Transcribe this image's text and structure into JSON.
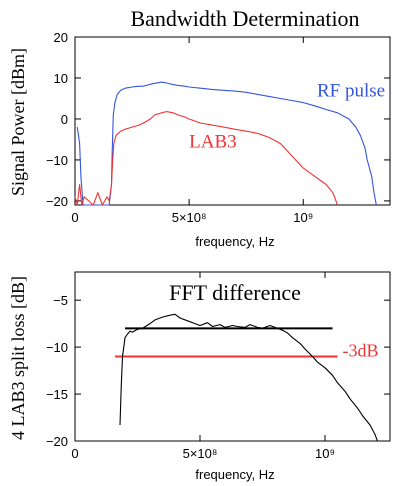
{
  "chart_data": [
    {
      "type": "line",
      "title": "Bandwidth Determination",
      "xlabel": "frequency, Hz",
      "ylabel": "Signal Power [dBm]",
      "xlim": [
        0,
        1380000000
      ],
      "ylim": [
        -21,
        20
      ],
      "xticks": [
        {
          "value": 0,
          "label": "0"
        },
        {
          "value": 500000000,
          "label": "5×10⁸"
        },
        {
          "value": 1000000000,
          "label": "10⁹"
        }
      ],
      "yticks": [
        {
          "value": 20,
          "label": "20"
        },
        {
          "value": 10,
          "label": "10"
        },
        {
          "value": 0,
          "label": "0"
        },
        {
          "value": -10,
          "label": "−10"
        },
        {
          "value": -20,
          "label": "−20"
        }
      ],
      "grid": false,
      "series": [
        {
          "name": "RF pulse",
          "color": "#3355dd",
          "x": [
            10000000,
            20000000,
            26000000,
            35000000,
            150000000,
            160000000,
            163000000,
            168000000,
            175000000,
            185000000,
            200000000,
            220000000,
            250000000,
            280000000,
            300000000,
            320000000,
            340000000,
            360000000,
            380000000,
            400000000,
            420000000,
            450000000,
            480000000,
            500000000,
            550000000,
            600000000,
            650000000,
            700000000,
            750000000,
            800000000,
            850000000,
            900000000,
            950000000,
            1000000000,
            1050000000,
            1100000000,
            1150000000,
            1200000000,
            1230000000,
            1250000000,
            1270000000,
            1280000000,
            1300000000,
            1310000000,
            1320000000
          ],
          "y": [
            -2,
            -6,
            -14,
            -21,
            -21,
            -16,
            -8,
            1,
            4,
            6,
            7,
            7.5,
            7.8,
            8,
            8,
            8.3,
            8.6,
            8.8,
            9,
            8.8,
            8.5,
            8.2,
            8,
            7.8,
            7.5,
            7.2,
            7,
            6.8,
            6.5,
            6,
            5.5,
            5,
            4.5,
            4,
            3.2,
            2.3,
            1.5,
            0,
            -2,
            -4,
            -7,
            -10,
            -14,
            -18,
            -21
          ]
        },
        {
          "name": "LAB3",
          "color": "#ee3333",
          "x": [
            0,
            10000000,
            20000000,
            30000000,
            40000000,
            60000000,
            80000000,
            100000000,
            120000000,
            140000000,
            150000000,
            160000000,
            165000000,
            170000000,
            175000000,
            180000000,
            190000000,
            200000000,
            220000000,
            250000000,
            280000000,
            300000000,
            330000000,
            350000000,
            380000000,
            400000000,
            430000000,
            450000000,
            480000000,
            500000000,
            550000000,
            600000000,
            650000000,
            700000000,
            750000000,
            800000000,
            850000000,
            900000000,
            950000000,
            1000000000,
            1050000000,
            1100000000,
            1130000000,
            1150000000
          ],
          "y": [
            -19,
            -21,
            -16,
            -21,
            -19,
            -20,
            -21,
            -18,
            -21,
            -19,
            -20,
            -16,
            -10,
            -6,
            -5,
            -4,
            -3.5,
            -3,
            -2.5,
            -2,
            -1.5,
            -1,
            0,
            1,
            1.5,
            1.8,
            1.5,
            1,
            0.5,
            0,
            -1,
            -1.5,
            -2,
            -2.5,
            -3,
            -3.5,
            -4.5,
            -6,
            -9,
            -12,
            -14,
            -16,
            -18,
            -21
          ]
        }
      ],
      "annotations": [
        {
          "text": "RF pulse",
          "color": "#3355dd",
          "x": 1060000000,
          "y": 5.5
        },
        {
          "text": "LAB3",
          "color": "#ee3333",
          "x": 500000000,
          "y": -7
        }
      ]
    },
    {
      "type": "line",
      "title": "",
      "xlabel": "frequency, Hz",
      "ylabel": "4 LAB3 split loss [dB]",
      "xlim": [
        0,
        1260000000
      ],
      "ylim": [
        -20,
        -2
      ],
      "xticks": [
        {
          "value": 0,
          "label": "0"
        },
        {
          "value": 500000000,
          "label": "5×10⁸"
        },
        {
          "value": 1000000000,
          "label": "10⁹"
        }
      ],
      "yticks": [
        {
          "value": -5,
          "label": "−5"
        },
        {
          "value": -10,
          "label": "−10"
        },
        {
          "value": -15,
          "label": "−15"
        },
        {
          "value": -20,
          "label": "−20"
        }
      ],
      "grid": false,
      "series": [
        {
          "name": "",
          "color": "#000000",
          "x": [
            180000000,
            185000000,
            190000000,
            195000000,
            200000000,
            210000000,
            220000000,
            230000000,
            250000000,
            270000000,
            300000000,
            320000000,
            350000000,
            380000000,
            400000000,
            420000000,
            450000000,
            480000000,
            500000000,
            530000000,
            550000000,
            580000000,
            600000000,
            630000000,
            650000000,
            680000000,
            700000000,
            730000000,
            750000000,
            780000000,
            800000000,
            830000000,
            850000000,
            870000000,
            900000000,
            920000000,
            950000000,
            970000000,
            1000000000,
            1030000000,
            1050000000,
            1080000000,
            1100000000,
            1130000000,
            1150000000,
            1180000000,
            1200000000,
            1210000000
          ],
          "y": [
            -18.3,
            -14,
            -11,
            -10,
            -9,
            -8.6,
            -8.3,
            -8.4,
            -8.1,
            -8,
            -7.5,
            -7.1,
            -6.8,
            -6.6,
            -6.5,
            -6.9,
            -7.2,
            -7.5,
            -7.7,
            -7.4,
            -7.8,
            -7.6,
            -7.9,
            -7.7,
            -7.8,
            -7.9,
            -7.6,
            -7.9,
            -8,
            -7.7,
            -7.9,
            -8.2,
            -8.5,
            -9,
            -9.6,
            -10.2,
            -11,
            -11.6,
            -12.2,
            -13,
            -13.8,
            -14.7,
            -15.5,
            -16.5,
            -17.3,
            -18.3,
            -19.3,
            -20
          ]
        }
      ],
      "reference_lines": [
        {
          "name": "",
          "color": "#000000",
          "y": -8,
          "x": [
            200000000,
            1030000000
          ]
        },
        {
          "name": "-3dB",
          "color": "#ee3333",
          "y": -11,
          "x": [
            160000000,
            1050000000
          ]
        }
      ],
      "annotations": [
        {
          "text": "FFT difference",
          "color": "#000000",
          "x": 640000000,
          "y": -5
        },
        {
          "text": "-3dB",
          "color": "#ee3333",
          "x": 1070000000,
          "y": -11
        }
      ]
    }
  ]
}
